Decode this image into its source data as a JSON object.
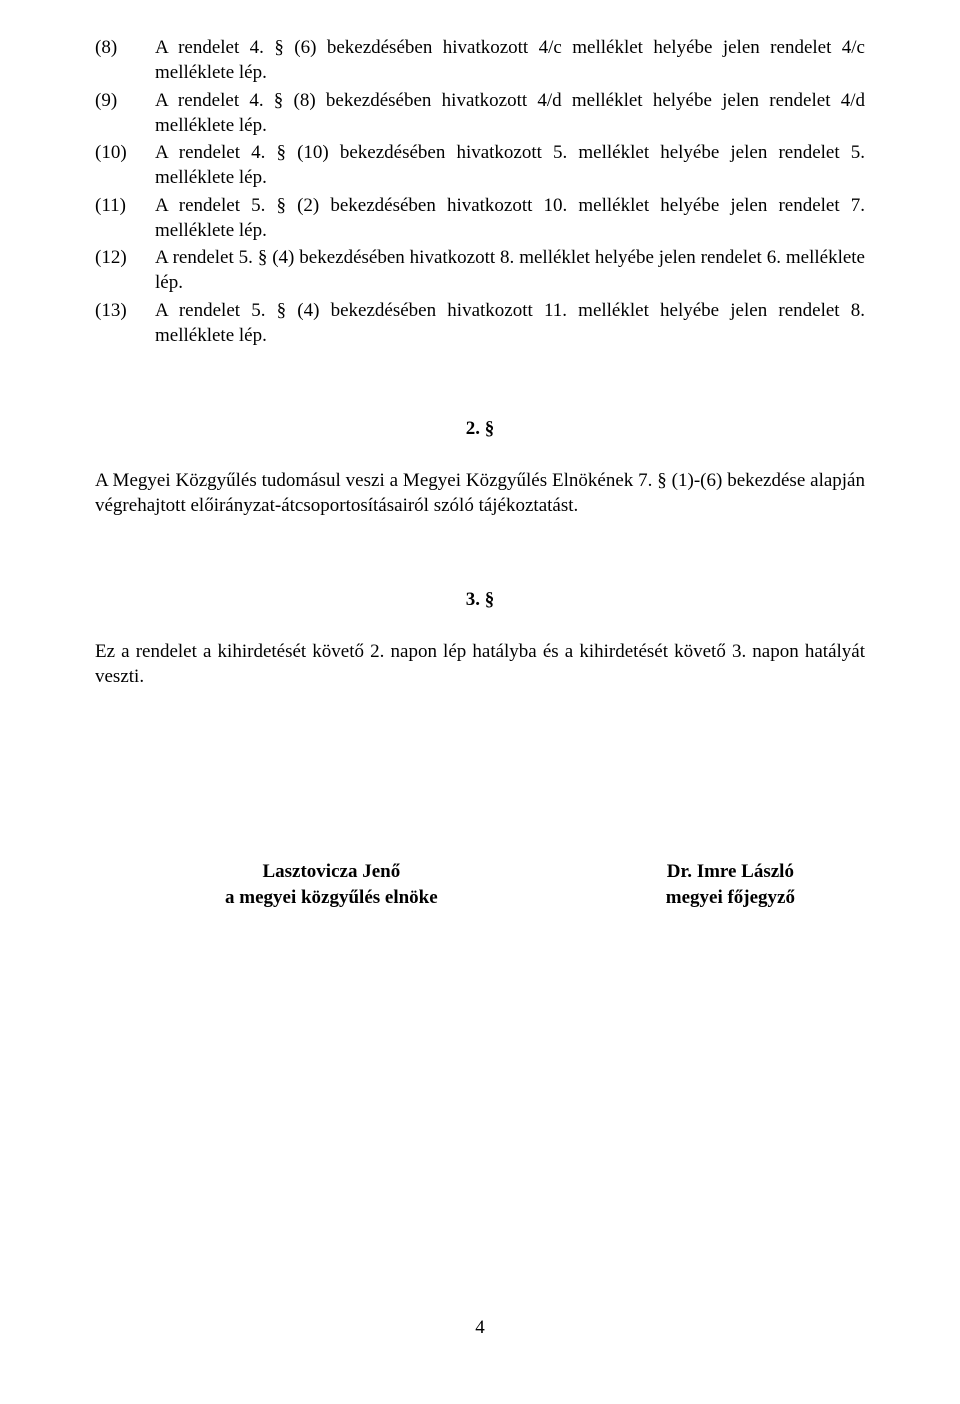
{
  "listItems": [
    {
      "number": "(8)",
      "text": "A rendelet 4. § (6) bekezdésében hivatkozott 4/c melléklet helyébe jelen rendelet 4/c melléklete lép."
    },
    {
      "number": "(9)",
      "text": "A rendelet 4. § (8) bekezdésében hivatkozott 4/d melléklet helyébe jelen rendelet 4/d melléklete lép."
    },
    {
      "number": "(10)",
      "text": "A rendelet 4. § (10) bekezdésében hivatkozott 5. melléklet helyébe jelen rendelet 5. melléklete lép."
    },
    {
      "number": "(11)",
      "text": "A rendelet 5. § (2) bekezdésében hivatkozott 10. melléklet helyébe jelen rendelet 7. melléklete lép."
    },
    {
      "number": "(12)",
      "text": "A rendelet 5. § (4) bekezdésében hivatkozott 8. melléklet helyébe jelen rendelet 6. melléklete lép."
    },
    {
      "number": "(13)",
      "text": "A rendelet 5. § (4) bekezdésében hivatkozott 11. melléklet helyébe jelen rendelet 8. melléklete lép."
    }
  ],
  "section2": {
    "heading": "2. §",
    "paragraph": "A Megyei Közgyűlés tudomásul veszi a Megyei Közgyűlés Elnökének 7. § (1)-(6) bekezdése alapján végrehajtott előirányzat-átcsoportosításairól szóló tájékoztatást."
  },
  "section3": {
    "heading": "3. §",
    "paragraph": "Ez a rendelet a kihirdetését követő 2. napon lép hatályba és a kihirdetését követő 3. napon hatályát veszti."
  },
  "signatures": {
    "left": {
      "name": "Lasztovicza Jenő",
      "title": "a megyei közgyűlés elnöke"
    },
    "right": {
      "name": "Dr. Imre László",
      "title": "megyei főjegyző"
    }
  },
  "pageNumber": "4"
}
